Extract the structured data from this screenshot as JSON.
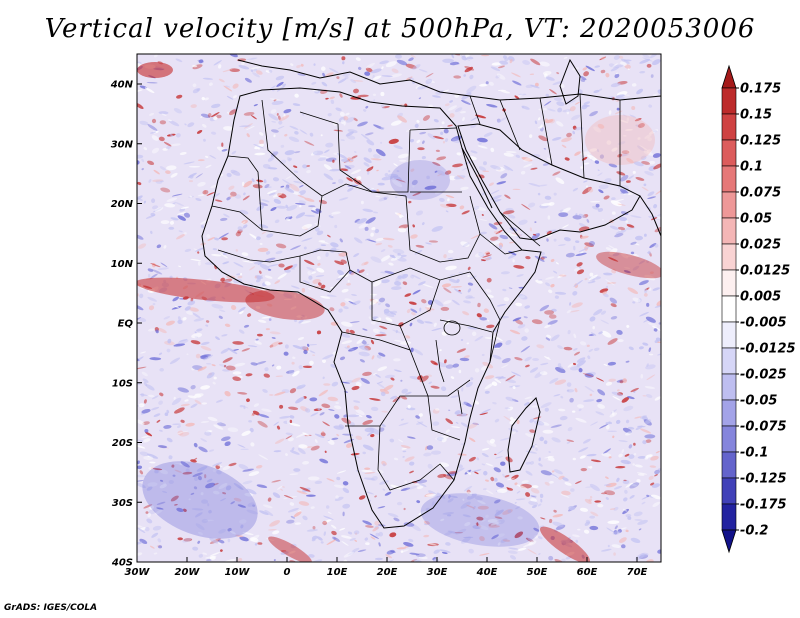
{
  "title": "Vertical velocity [m/s] at 500hPa, VT: 2020053006",
  "credit": "GrADS: IGES/COLA",
  "axes": {
    "lat_labels": [
      "40N",
      "30N",
      "20N",
      "10N",
      "EQ",
      "10S",
      "20S",
      "30S",
      "40S"
    ],
    "lon_labels": [
      "30W",
      "20W",
      "10W",
      "0",
      "10E",
      "20E",
      "30E",
      "40E",
      "50E",
      "60E",
      "70E"
    ]
  },
  "colorbar": {
    "labels": [
      "0.175",
      "0.15",
      "0.125",
      "0.1",
      "0.075",
      "0.05",
      "0.025",
      "0.0125",
      "0.005",
      "-0.005",
      "-0.0125",
      "-0.025",
      "-0.05",
      "-0.075",
      "-0.1",
      "-0.125",
      "-0.175",
      "-0.2"
    ],
    "colors": [
      "#a51a1a",
      "#bd2b2b",
      "#cf4242",
      "#dc5c5c",
      "#e67878",
      "#ee9898",
      "#f4b6b6",
      "#f9d3d3",
      "#fdf0f0",
      "#ffffff",
      "#eeeefc",
      "#d6d6f7",
      "#bebef0",
      "#a3a3e8",
      "#8585dc",
      "#6464cc",
      "#4141b8",
      "#2323a0",
      "#12128a"
    ]
  },
  "field_colors": {
    "ocean_base": "#e8e2f6",
    "land_base": "#efe9f5",
    "blue_strong": "#6f6fd8",
    "blue_light": "#c2c2f2",
    "red_strong": "#c42a2a",
    "red_light": "#f3b9b9",
    "white": "#ffffff",
    "border_line": "#000000"
  }
}
